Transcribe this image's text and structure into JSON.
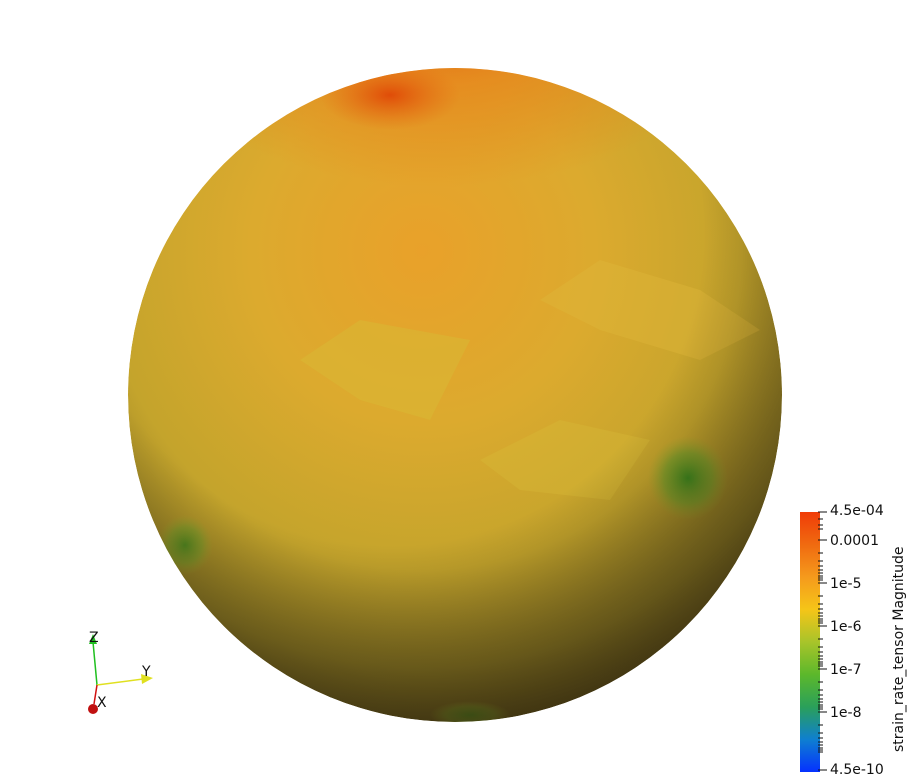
{
  "scalar_bar": {
    "title": "strain_rate_tensor Magnitude",
    "max_label": "4.5e-04",
    "min_label": "4.5e-10",
    "tick_labels": [
      "0.0001",
      "1e-5",
      "1e-6",
      "1e-7",
      "1e-8"
    ],
    "colors": [
      "#0531ff",
      "#0f7fd0",
      "#2aa05a",
      "#5cb82b",
      "#a8c42a",
      "#f5c518",
      "#f59a1c",
      "#f06a10",
      "#f03c08"
    ]
  },
  "orientation_axes": {
    "z_label": "Z",
    "y_label": "Y",
    "x_label": "X",
    "colors": {
      "x": "#d01010",
      "y": "#e0e020",
      "z": "#20c020"
    }
  },
  "colors": {
    "sphere_top": "#e8881c",
    "sphere_mid": "#d9a82a",
    "sphere_low": "#b8a22c",
    "sphere_shadow": "#5a4a1a",
    "hotspot": "#e55a10",
    "green_patch": "#4a8a20"
  }
}
